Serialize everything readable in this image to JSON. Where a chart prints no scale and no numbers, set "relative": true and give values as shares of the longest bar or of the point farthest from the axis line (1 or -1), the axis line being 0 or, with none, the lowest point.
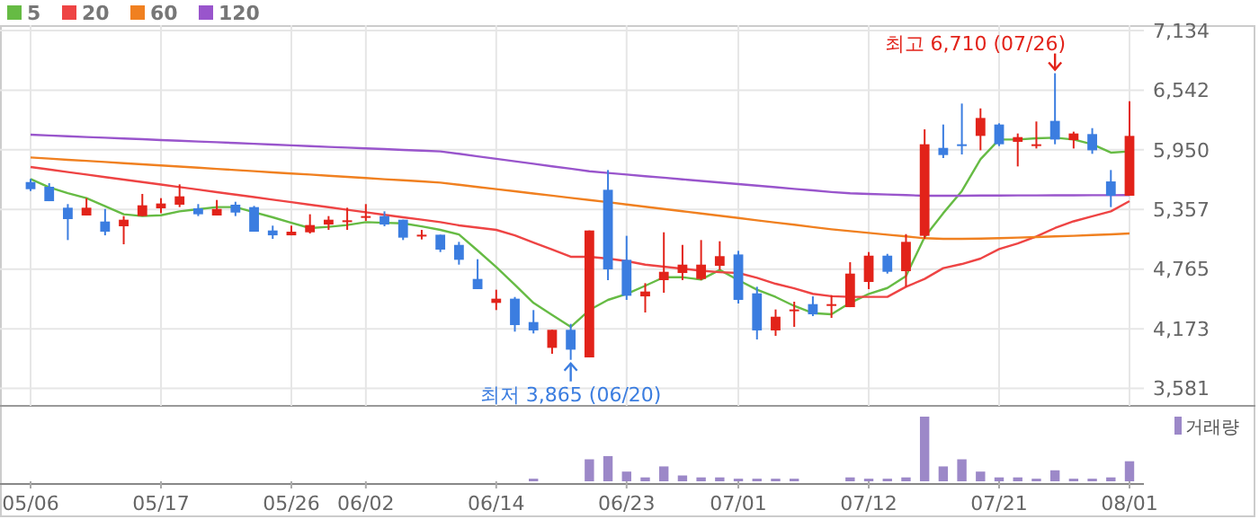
{
  "chart_data": [
    {
      "type": "candlestick",
      "categories": [
        null,
        null,
        null,
        null,
        null,
        null,
        null,
        null,
        null,
        null,
        null,
        null,
        null,
        null,
        null,
        null,
        null,
        null,
        null,
        null,
        null,
        null,
        null,
        null,
        null,
        null,
        null,
        null,
        null,
        null,
        null,
        null,
        null,
        null,
        null,
        null,
        null,
        null,
        null,
        null,
        null,
        null,
        null,
        null,
        null,
        null,
        null,
        null,
        null,
        null,
        null,
        null,
        null,
        null,
        null,
        null,
        null,
        null,
        null,
        null
      ],
      "ohlc": [
        [
          5630,
          5660,
          5541,
          5559
        ],
        [
          5583,
          5619,
          5440,
          5440
        ],
        [
          5375,
          5411,
          5054,
          5262
        ],
        [
          5298,
          5470,
          5298,
          5375
        ],
        [
          5238,
          5363,
          5101,
          5137
        ],
        [
          5191,
          5292,
          5012,
          5256
        ],
        [
          5292,
          5512,
          5292,
          5399
        ],
        [
          5369,
          5470,
          5321,
          5417
        ],
        [
          5405,
          5607,
          5381,
          5488
        ],
        [
          5369,
          5411,
          5292,
          5310
        ],
        [
          5298,
          5452,
          5298,
          5363
        ],
        [
          5405,
          5434,
          5292,
          5327
        ],
        [
          5381,
          5393,
          5137,
          5137
        ],
        [
          5149,
          5197,
          5066,
          5101
        ],
        [
          5101,
          5197,
          5101,
          5137
        ],
        [
          5131,
          5310,
          5119,
          5203
        ],
        [
          5208,
          5292,
          5155,
          5256
        ],
        [
          5244,
          5375,
          5155,
          5250
        ],
        [
          5286,
          5411,
          5244,
          5292
        ],
        [
          5292,
          5339,
          5191,
          5208
        ],
        [
          5256,
          5256,
          5054,
          5078
        ],
        [
          5101,
          5155,
          5060,
          5107
        ],
        [
          5107,
          5107,
          4935,
          4959
        ],
        [
          5006,
          5036,
          4810,
          4858
        ],
        [
          4668,
          4864,
          4567,
          4567
        ],
        [
          4430,
          4561,
          4359,
          4472
        ],
        [
          4472,
          4489,
          4145,
          4210
        ],
        [
          4240,
          4359,
          4127,
          4157
        ],
        [
          3984,
          4163,
          3925,
          4163
        ],
        [
          4163,
          4222,
          3865,
          3966
        ],
        [
          3889,
          5149,
          3889,
          5149
        ],
        [
          5553,
          5749,
          4656,
          4763
        ],
        [
          4858,
          5096,
          4460,
          4501
        ],
        [
          4495,
          4626,
          4335,
          4543
        ],
        [
          4656,
          5131,
          4531,
          4739
        ],
        [
          4727,
          5006,
          4656,
          4810
        ],
        [
          4668,
          5054,
          4656,
          4810
        ],
        [
          4798,
          5042,
          4757,
          4894
        ],
        [
          4911,
          4947,
          4424,
          4460
        ],
        [
          4525,
          4590,
          4067,
          4157
        ],
        [
          4157,
          4365,
          4103,
          4293
        ],
        [
          4359,
          4442,
          4192,
          4365
        ],
        [
          4418,
          4495,
          4299,
          4317
        ],
        [
          4412,
          4507,
          4281,
          4418
        ],
        [
          4388,
          4834,
          4388,
          4721
        ],
        [
          4638,
          4935,
          4567,
          4899
        ],
        [
          4899,
          4917,
          4721,
          4739
        ],
        [
          4745,
          5113,
          4590,
          5036
        ],
        [
          5096,
          6153,
          5066,
          6005
        ],
        [
          5969,
          6201,
          5868,
          5898
        ],
        [
          6005,
          6409,
          5904,
          5999
        ],
        [
          6088,
          6361,
          5945,
          6266
        ],
        [
          6201,
          6213,
          5987,
          6005
        ],
        [
          6029,
          6112,
          5785,
          6076
        ],
        [
          5999,
          6231,
          5963,
          6005
        ],
        [
          6237,
          6710,
          6005,
          6052
        ],
        [
          6046,
          6130,
          5963,
          6112
        ],
        [
          6106,
          6165,
          5910,
          5945
        ],
        [
          5636,
          5749,
          5381,
          5494
        ],
        [
          5494,
          6433,
          5494,
          6088
        ]
      ],
      "series": [
        {
          "name": "5",
          "type": "line",
          "color": "#66bb44",
          "values": [
            5660,
            5577,
            5520,
            5470,
            5390,
            5310,
            5292,
            5300,
            5339,
            5360,
            5381,
            5381,
            5330,
            5280,
            5225,
            5173,
            5185,
            5203,
            5232,
            5225,
            5220,
            5190,
            5155,
            5110,
            4950,
            4787,
            4610,
            4430,
            4310,
            4192,
            4359,
            4460,
            4519,
            4600,
            4685,
            4685,
            4662,
            4757,
            4656,
            4561,
            4489,
            4400,
            4329,
            4317,
            4430,
            4519,
            4578,
            4697,
            5084,
            5321,
            5541,
            5856,
            6052,
            6052,
            6064,
            6070,
            6052,
            6005,
            5922,
            5934
          ]
        },
        {
          "name": "20",
          "type": "line",
          "color": "#ee4444",
          "values": [
            5779,
            5754,
            5729,
            5704,
            5679,
            5654,
            5630,
            5605,
            5580,
            5555,
            5530,
            5505,
            5480,
            5455,
            5430,
            5405,
            5380,
            5355,
            5330,
            5305,
            5280,
            5256,
            5232,
            5200,
            5178,
            5155,
            5100,
            5030,
            4960,
            4888,
            4888,
            4870,
            4845,
            4810,
            4790,
            4770,
            4750,
            4735,
            4727,
            4680,
            4620,
            4575,
            4520,
            4497,
            4490,
            4490,
            4490,
            4590,
            4668,
            4775,
            4816,
            4870,
            4965,
            5020,
            5090,
            5173,
            5240,
            5290,
            5339,
            5440
          ]
        },
        {
          "name": "60",
          "type": "line",
          "color": "#f08020",
          "values": [
            5874,
            5863,
            5851,
            5840,
            5829,
            5817,
            5806,
            5795,
            5783,
            5772,
            5760,
            5749,
            5738,
            5726,
            5715,
            5704,
            5692,
            5681,
            5670,
            5658,
            5647,
            5636,
            5624,
            5603,
            5581,
            5560,
            5538,
            5516,
            5495,
            5473,
            5452,
            5430,
            5407,
            5385,
            5362,
            5340,
            5318,
            5295,
            5273,
            5250,
            5228,
            5206,
            5183,
            5161,
            5143,
            5125,
            5107,
            5090,
            5072,
            5066,
            5066,
            5068,
            5072,
            5078,
            5084,
            5090,
            5096,
            5104,
            5110,
            5119
          ]
        },
        {
          "name": "120",
          "type": "line",
          "color": "#9955cc",
          "values": [
            6100,
            6092,
            6085,
            6077,
            6070,
            6062,
            6055,
            6047,
            6040,
            6032,
            6025,
            6017,
            6010,
            6002,
            5994,
            5987,
            5979,
            5972,
            5964,
            5957,
            5949,
            5942,
            5934,
            5910,
            5885,
            5860,
            5836,
            5811,
            5786,
            5762,
            5737,
            5720,
            5704,
            5688,
            5673,
            5657,
            5641,
            5625,
            5610,
            5594,
            5578,
            5562,
            5547,
            5531,
            5518,
            5512,
            5506,
            5500,
            5494,
            5494,
            5494,
            5496,
            5496,
            5497,
            5497,
            5498,
            5498,
            5499,
            5499,
            5500
          ]
        }
      ],
      "ylim": [
        3408,
        7134
      ],
      "yticks": [
        {
          "value": 3581,
          "label": "3,581"
        },
        {
          "value": 4173,
          "label": "4,173"
        },
        {
          "value": 4765,
          "label": "4,765"
        },
        {
          "value": 5357,
          "label": "5,357"
        },
        {
          "value": 5950,
          "label": "5,950"
        },
        {
          "value": 6542,
          "label": "6,542"
        },
        {
          "value": 7134,
          "label": "7,134"
        }
      ],
      "grid": true,
      "legend": "top left",
      "tick_labels": "y",
      "annotations": [
        "최고 6,710 (07/26)",
        "최저 3,865 (06/20)"
      ]
    },
    {
      "type": "bar",
      "relative": true,
      "categories": [
        "05/06",
        null,
        null,
        null,
        null,
        null,
        null,
        "05/17",
        null,
        null,
        null,
        null,
        null,
        null,
        "05/26",
        null,
        null,
        null,
        "06/02",
        null,
        null,
        null,
        null,
        null,
        null,
        "06/14",
        null,
        null,
        null,
        null,
        null,
        null,
        "06/23",
        null,
        null,
        null,
        null,
        null,
        "07/01",
        null,
        null,
        null,
        null,
        null,
        null,
        "07/12",
        null,
        null,
        null,
        null,
        null,
        null,
        "07/21",
        null,
        null,
        null,
        null,
        null,
        null,
        "08/01"
      ],
      "series": [
        {
          "name": "거래량",
          "color": "#9c88c8",
          "values": [
            null,
            null,
            null,
            null,
            null,
            null,
            null,
            null,
            null,
            null,
            null,
            null,
            null,
            null,
            null,
            null,
            null,
            null,
            null,
            null,
            null,
            null,
            null,
            null,
            null,
            null,
            null,
            0.04,
            null,
            null,
            0.34,
            0.39,
            0.15,
            0.06,
            0.23,
            0.09,
            0.06,
            0.06,
            0.04,
            0.04,
            0.04,
            0.04,
            null,
            null,
            0.06,
            0.04,
            0.04,
            0.06,
            1,
            0.23,
            0.34,
            0.15,
            0.06,
            0.06,
            0.04,
            0.17,
            0.04,
            0.04,
            0.06,
            0.31
          ]
        }
      ],
      "legend": "top right",
      "tick_labels": "x"
    }
  ]
}
